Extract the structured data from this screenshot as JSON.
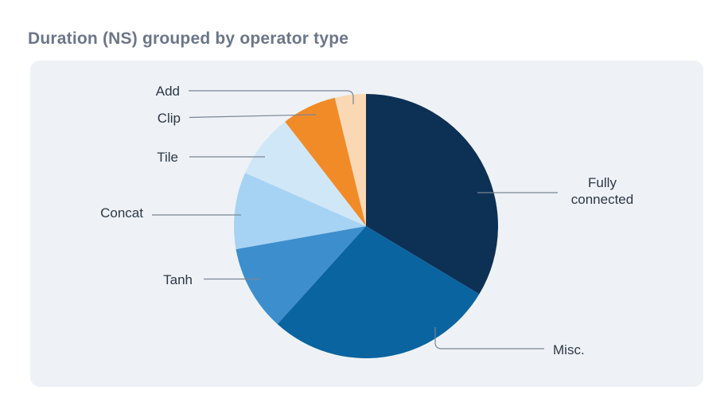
{
  "page": {
    "title": "Duration (NS) grouped by operator type"
  },
  "colors": {
    "page_bg": "#ffffff",
    "card_bg": "#eef2f6",
    "title_text": "#6b7689",
    "label_text": "#2c3845",
    "leader_line": "#7a8694"
  },
  "chart_data": {
    "type": "pie",
    "title": "Duration (NS) grouped by operator type",
    "unit": "percent of total duration (estimated from slice angles; no numeric labels shown)",
    "start_angle_deg": 0,
    "direction": "clockwise",
    "legend": "none",
    "label_style": "outside-with-leader-lines",
    "slices": [
      {
        "label": "Fully connected",
        "value": 33.6,
        "color": "#0d3055"
      },
      {
        "label": "Misc.",
        "value": 28.1,
        "color": "#0a649f"
      },
      {
        "label": "Tanh",
        "value": 10.5,
        "color": "#3d8ecd"
      },
      {
        "label": "Concat",
        "value": 9.4,
        "color": "#a6d3f3"
      },
      {
        "label": "Tile",
        "value": 7.9,
        "color": "#d0e7f8"
      },
      {
        "label": "Clip",
        "value": 6.7,
        "color": "#f18b28"
      },
      {
        "label": "Add",
        "value": 3.8,
        "color": "#fad8b3"
      }
    ]
  }
}
